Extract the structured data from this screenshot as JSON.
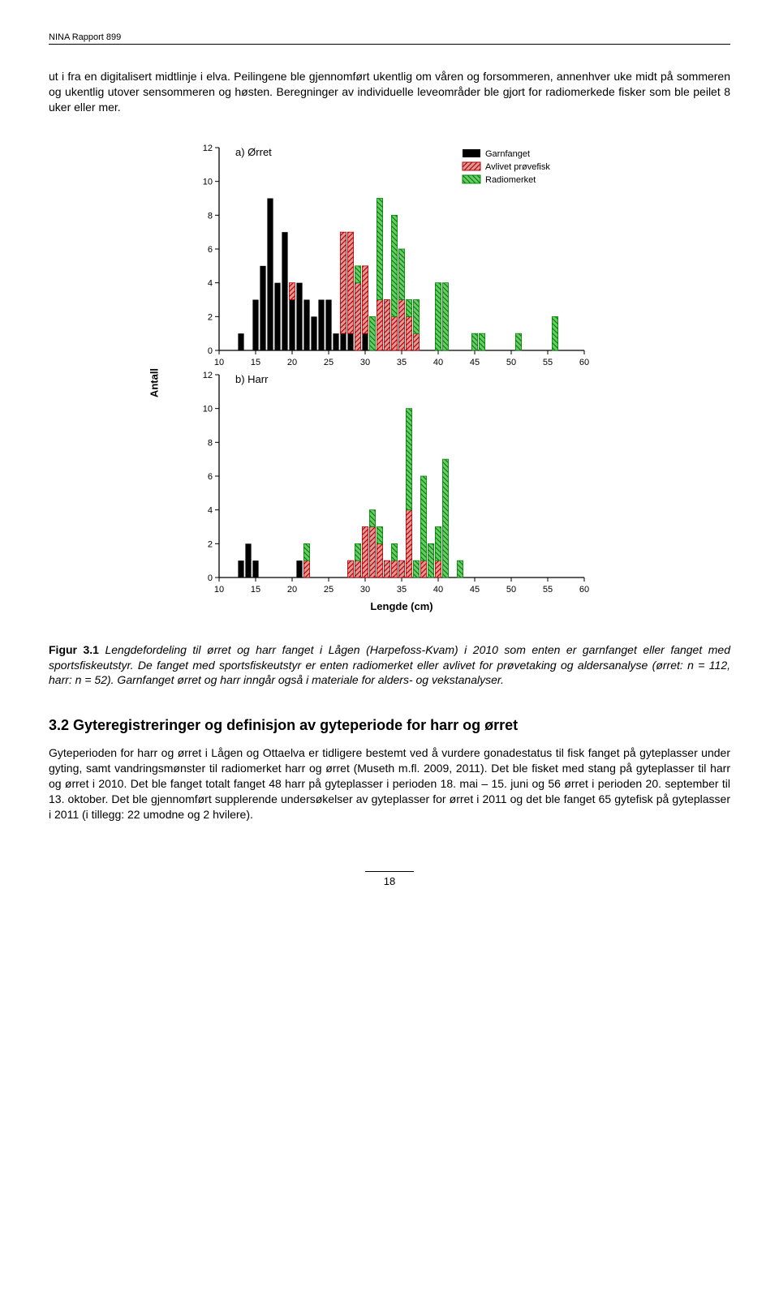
{
  "header": "NINA Rapport 899",
  "para1": "ut i fra en digitalisert midtlinje i elva. Peilingene ble gjennomført ukentlig om våren og forsommeren, annenhver uke midt på sommeren og ukentlig utover sensommeren og høsten. Beregninger av individuelle leveområder ble gjort for radiomerkede fisker som ble peilet 8 uker eller mer.",
  "figure": {
    "y_axis_label": "Antall",
    "x_axis_label": "Lengde (cm)",
    "panel_a_label": "a) Ørret",
    "panel_b_label": "b) Harr",
    "legend": {
      "garn": "Garnfanget",
      "avlivet": "Avlivet prøvefisk",
      "radio": "Radiomerket"
    },
    "colors": {
      "garn": "#000000",
      "avlivet_fill": "#d99a9a",
      "avlivet_stroke": "#c00000",
      "radio_fill": "#6ec96e",
      "radio_stroke": "#008800",
      "axis": "#000000",
      "bg": "#ffffff"
    },
    "axis": {
      "xmin": 10,
      "xmax": 60,
      "xtick_step": 5,
      "ymin": 0,
      "ymax": 12,
      "ytick_step": 2,
      "tick_fontsize": 11,
      "label_fontsize": 13,
      "panel_label_fontsize": 13,
      "bar_width_cm": 0.8
    },
    "panel_a": [
      {
        "x": 13,
        "g": 1,
        "a": 0,
        "r": 0
      },
      {
        "x": 15,
        "g": 3,
        "a": 0,
        "r": 0
      },
      {
        "x": 16,
        "g": 5,
        "a": 0,
        "r": 0
      },
      {
        "x": 17,
        "g": 9,
        "a": 0,
        "r": 0
      },
      {
        "x": 18,
        "g": 4,
        "a": 0,
        "r": 0
      },
      {
        "x": 19,
        "g": 7,
        "a": 0,
        "r": 0
      },
      {
        "x": 20,
        "g": 3,
        "a": 1,
        "r": 0
      },
      {
        "x": 21,
        "g": 4,
        "a": 0,
        "r": 0
      },
      {
        "x": 22,
        "g": 3,
        "a": 0,
        "r": 0
      },
      {
        "x": 23,
        "g": 2,
        "a": 0,
        "r": 0
      },
      {
        "x": 24,
        "g": 3,
        "a": 0,
        "r": 0
      },
      {
        "x": 25,
        "g": 3,
        "a": 0,
        "r": 0
      },
      {
        "x": 26,
        "g": 1,
        "a": 0,
        "r": 0
      },
      {
        "x": 27,
        "g": 1,
        "a": 6,
        "r": 0
      },
      {
        "x": 28,
        "g": 1,
        "a": 6,
        "r": 0
      },
      {
        "x": 29,
        "g": 0,
        "a": 4,
        "r": 1
      },
      {
        "x": 30,
        "g": 1,
        "a": 4,
        "r": 0
      },
      {
        "x": 31,
        "g": 0,
        "a": 0,
        "r": 2
      },
      {
        "x": 32,
        "g": 0,
        "a": 3,
        "r": 6
      },
      {
        "x": 33,
        "g": 0,
        "a": 3,
        "r": 0
      },
      {
        "x": 34,
        "g": 0,
        "a": 2,
        "r": 6
      },
      {
        "x": 35,
        "g": 0,
        "a": 3,
        "r": 3
      },
      {
        "x": 36,
        "g": 0,
        "a": 2,
        "r": 1
      },
      {
        "x": 37,
        "g": 0,
        "a": 1,
        "r": 2
      },
      {
        "x": 40,
        "g": 0,
        "a": 0,
        "r": 4
      },
      {
        "x": 41,
        "g": 0,
        "a": 0,
        "r": 4
      },
      {
        "x": 45,
        "g": 0,
        "a": 0,
        "r": 1
      },
      {
        "x": 46,
        "g": 0,
        "a": 0,
        "r": 1
      },
      {
        "x": 51,
        "g": 0,
        "a": 0,
        "r": 1
      },
      {
        "x": 56,
        "g": 0,
        "a": 0,
        "r": 2
      }
    ],
    "panel_b": [
      {
        "x": 13,
        "g": 1,
        "a": 0,
        "r": 0
      },
      {
        "x": 14,
        "g": 2,
        "a": 0,
        "r": 0
      },
      {
        "x": 15,
        "g": 1,
        "a": 0,
        "r": 0
      },
      {
        "x": 21,
        "g": 1,
        "a": 0,
        "r": 0
      },
      {
        "x": 22,
        "g": 0,
        "a": 1,
        "r": 1
      },
      {
        "x": 28,
        "g": 0,
        "a": 1,
        "r": 0
      },
      {
        "x": 29,
        "g": 0,
        "a": 1,
        "r": 1
      },
      {
        "x": 30,
        "g": 0,
        "a": 3,
        "r": 0
      },
      {
        "x": 31,
        "g": 0,
        "a": 3,
        "r": 1
      },
      {
        "x": 32,
        "g": 0,
        "a": 2,
        "r": 1
      },
      {
        "x": 33,
        "g": 0,
        "a": 1,
        "r": 0
      },
      {
        "x": 34,
        "g": 0,
        "a": 1,
        "r": 1
      },
      {
        "x": 35,
        "g": 0,
        "a": 1,
        "r": 0
      },
      {
        "x": 36,
        "g": 0,
        "a": 4,
        "r": 6
      },
      {
        "x": 37,
        "g": 0,
        "a": 0,
        "r": 1
      },
      {
        "x": 38,
        "g": 0,
        "a": 1,
        "r": 5
      },
      {
        "x": 39,
        "g": 0,
        "a": 0,
        "r": 2
      },
      {
        "x": 40,
        "g": 0,
        "a": 1,
        "r": 2
      },
      {
        "x": 41,
        "g": 0,
        "a": 0,
        "r": 7
      },
      {
        "x": 43,
        "g": 0,
        "a": 0,
        "r": 1
      }
    ]
  },
  "caption_label": "Figur 3.1",
  "caption_text": " Lengdefordeling til ørret og harr fanget i Lågen (Harpefoss-Kvam) i 2010 som enten er garnfanget eller fanget med sportsfiskeutstyr. De fanget med sportsfiskeutstyr er enten radiomerket eller avlivet for prøvetaking og aldersanalyse (ørret: n = 112, harr: n = 52). Garnfanget ørret og harr inngår også i materiale for alders- og vekstanalyser.",
  "section_title": "3.2 Gyteregistreringer og definisjon av gyteperiode for harr og ørret",
  "section_body": "Gyteperioden for harr og ørret i Lågen og Ottaelva er tidligere bestemt ved å vurdere gonadestatus til fisk fanget på gyteplasser under gyting, samt vandringsmønster til radiomerket harr og ørret (Museth m.fl. 2009, 2011). Det ble fisket med stang på gyteplasser til harr og ørret i 2010. Det ble fanget totalt fanget 48 harr på gyteplasser i perioden 18. mai – 15. juni og 56 ørret i perioden 20. september til 13. oktober. Det ble gjennomført supplerende undersøkelser av gyteplasser for ørret i 2011 og det ble fanget 65 gytefisk på gyteplasser i 2011 (i tillegg: 22 umodne og 2 hvilere).",
  "page_number": "18"
}
